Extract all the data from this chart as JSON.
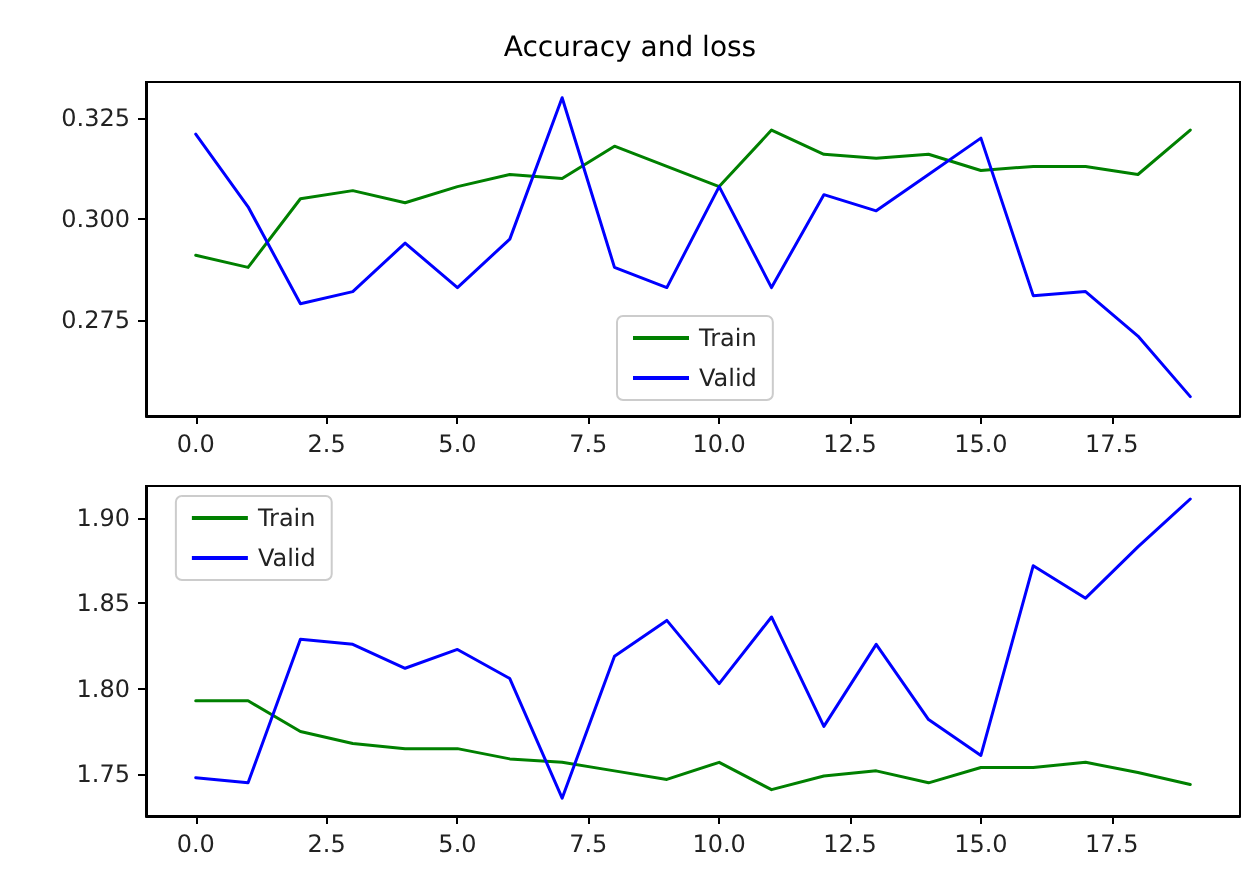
{
  "chart_data": [
    {
      "type": "line",
      "title": "Accuracy and loss",
      "x": [
        0,
        1,
        2,
        3,
        4,
        5,
        6,
        7,
        8,
        9,
        10,
        11,
        12,
        13,
        14,
        15,
        16,
        17,
        18,
        19
      ],
      "series": [
        {
          "name": "Train",
          "color": "#008000",
          "values": [
            0.291,
            0.288,
            0.305,
            0.307,
            0.304,
            0.308,
            0.311,
            0.31,
            0.318,
            0.313,
            0.308,
            0.322,
            0.316,
            0.315,
            0.316,
            0.312,
            0.313,
            0.313,
            0.311,
            0.322
          ]
        },
        {
          "name": "Valid",
          "color": "#0000ff",
          "values": [
            0.321,
            0.303,
            0.279,
            0.282,
            0.294,
            0.283,
            0.295,
            0.33,
            0.288,
            0.283,
            0.308,
            0.283,
            0.306,
            0.302,
            0.311,
            0.32,
            0.281,
            0.282,
            0.271,
            0.256
          ]
        }
      ],
      "xlim": [
        -0.95,
        19.95
      ],
      "ylim": [
        0.2512,
        0.3339
      ],
      "xticks": [
        {
          "value": 0,
          "label": "0.0"
        },
        {
          "value": 2.5,
          "label": "2.5"
        },
        {
          "value": 5,
          "label": "5.0"
        },
        {
          "value": 7.5,
          "label": "7.5"
        },
        {
          "value": 10,
          "label": "10.0"
        },
        {
          "value": 12.5,
          "label": "12.5"
        },
        {
          "value": 15,
          "label": "15.0"
        },
        {
          "value": 17.5,
          "label": "17.5"
        }
      ],
      "yticks": [
        0.275,
        {
          "value": 0.3,
          "label": "0.300"
        },
        0.325
      ],
      "legend": "bottom",
      "grid": false,
      "marker": "none",
      "line_style": "solid"
    },
    {
      "type": "line",
      "x": [
        0,
        1,
        2,
        3,
        4,
        5,
        6,
        7,
        8,
        9,
        10,
        11,
        12,
        13,
        14,
        15,
        16,
        17,
        18,
        19
      ],
      "series": [
        {
          "name": "Train",
          "color": "#008000",
          "values": [
            1.793,
            1.793,
            1.775,
            1.768,
            1.765,
            1.765,
            1.759,
            1.757,
            1.752,
            1.747,
            1.757,
            1.741,
            1.749,
            1.752,
            1.745,
            1.754,
            1.754,
            1.757,
            1.751,
            1.744
          ]
        },
        {
          "name": "Valid",
          "color": "#0000ff",
          "values": [
            1.748,
            1.745,
            1.829,
            1.826,
            1.812,
            1.823,
            1.806,
            1.736,
            1.819,
            1.84,
            1.803,
            1.842,
            1.778,
            1.826,
            1.782,
            1.761,
            1.872,
            1.853,
            1.883,
            1.911
          ]
        }
      ],
      "xlim": [
        -0.95,
        19.95
      ],
      "ylim": [
        1.7256,
        1.9186
      ],
      "xticks": [
        {
          "value": 0,
          "label": "0.0"
        },
        {
          "value": 2.5,
          "label": "2.5"
        },
        {
          "value": 5,
          "label": "5.0"
        },
        {
          "value": 7.5,
          "label": "7.5"
        },
        {
          "value": 10,
          "label": "10.0"
        },
        {
          "value": 12.5,
          "label": "12.5"
        },
        {
          "value": 15,
          "label": "15.0"
        },
        {
          "value": 17.5,
          "label": "17.5"
        }
      ],
      "yticks": [
        1.75,
        {
          "value": 1.8,
          "label": "1.80"
        },
        1.85,
        {
          "value": 1.9,
          "label": "1.90"
        }
      ],
      "legend": "top left",
      "grid": false,
      "marker": "none",
      "line_style": "solid"
    }
  ]
}
